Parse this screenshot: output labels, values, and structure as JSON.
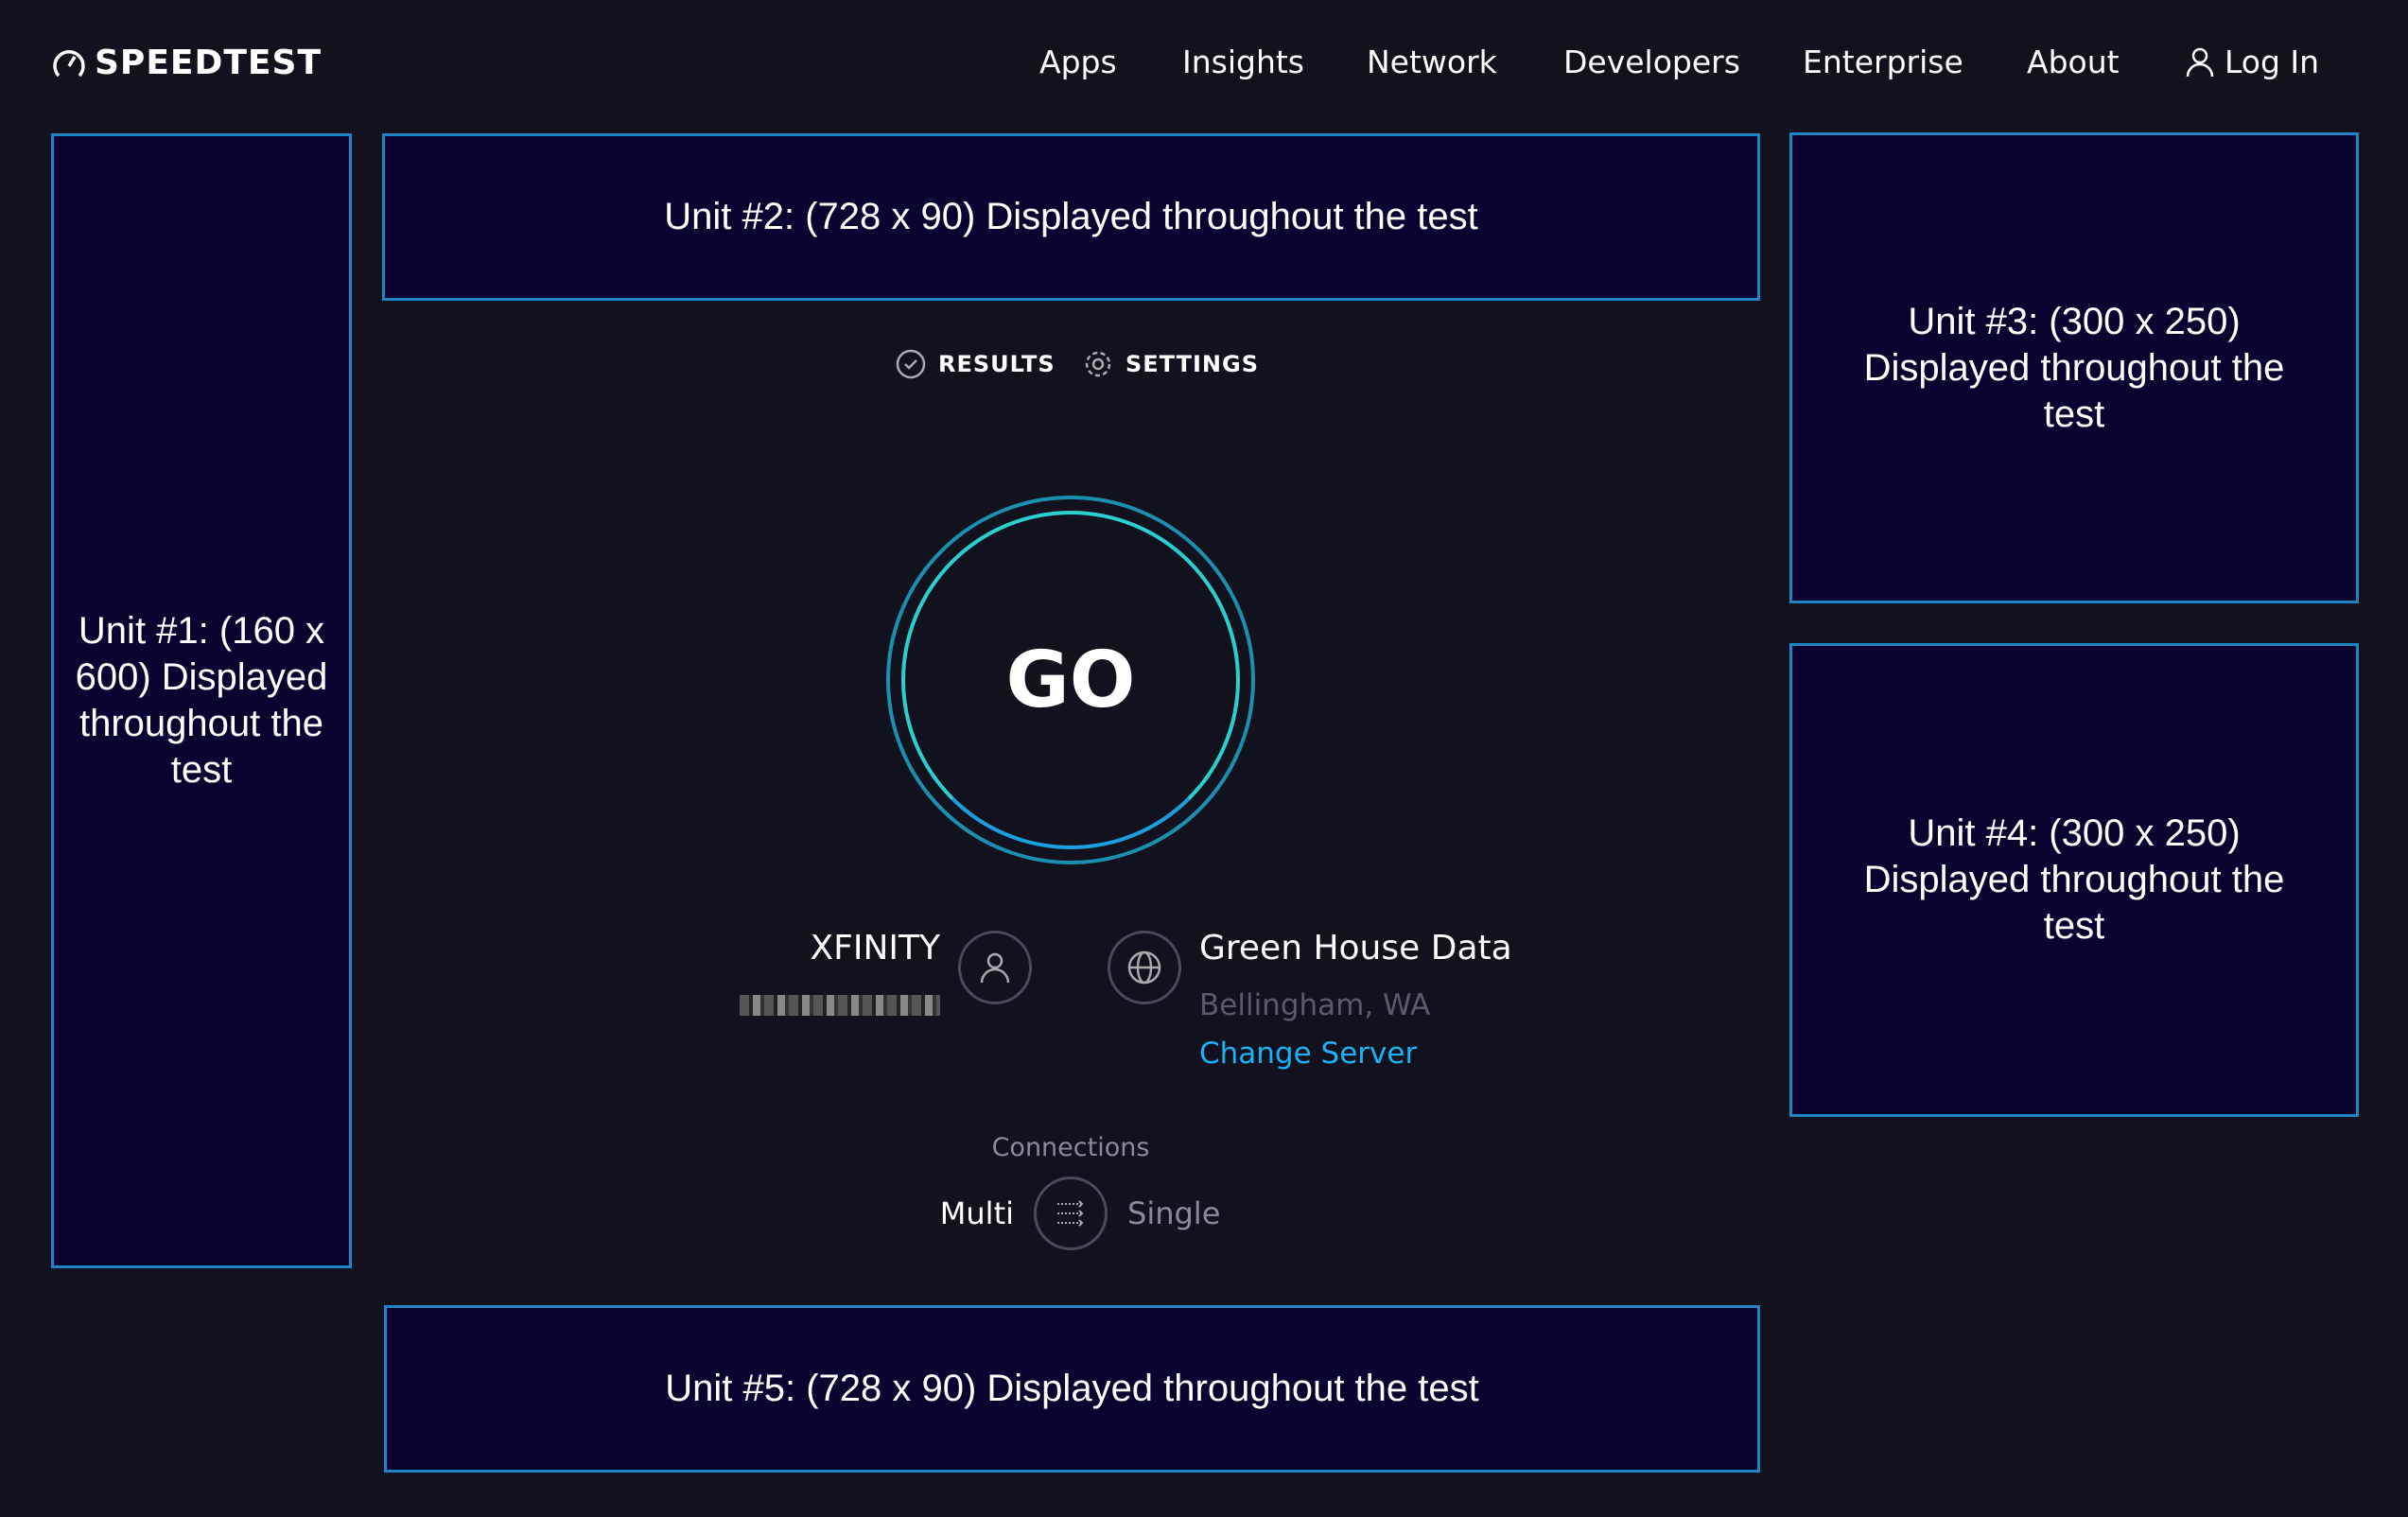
{
  "header": {
    "logo": "SPEEDTEST",
    "nav": [
      "Apps",
      "Insights",
      "Network",
      "Developers",
      "Enterprise",
      "About"
    ],
    "login": "Log In"
  },
  "ads": {
    "unit1": "Unit #1: (160 x 600) Displayed throughout the test",
    "unit2": "Unit #2: (728 x 90) Displayed throughout the test",
    "unit3": "Unit #3: (300 x 250) Displayed throughout the test",
    "unit4": "Unit #4: (300 x 250) Displayed throughout the test",
    "unit5": "Unit #5: (728 x 90) Displayed throughout the test"
  },
  "tabs": {
    "results": "RESULTS",
    "settings": "SETTINGS"
  },
  "go": "GO",
  "isp": {
    "name": "XFINITY"
  },
  "server": {
    "name": "Green House Data",
    "location": "Bellingham, WA",
    "change": "Change Server"
  },
  "connections": {
    "label": "Connections",
    "multi": "Multi",
    "single": "Single"
  },
  "colors": {
    "background": "#11121d",
    "ad_fill": "#0b0230",
    "ad_border": "#1d85c4",
    "link": "#1cb0f6"
  }
}
